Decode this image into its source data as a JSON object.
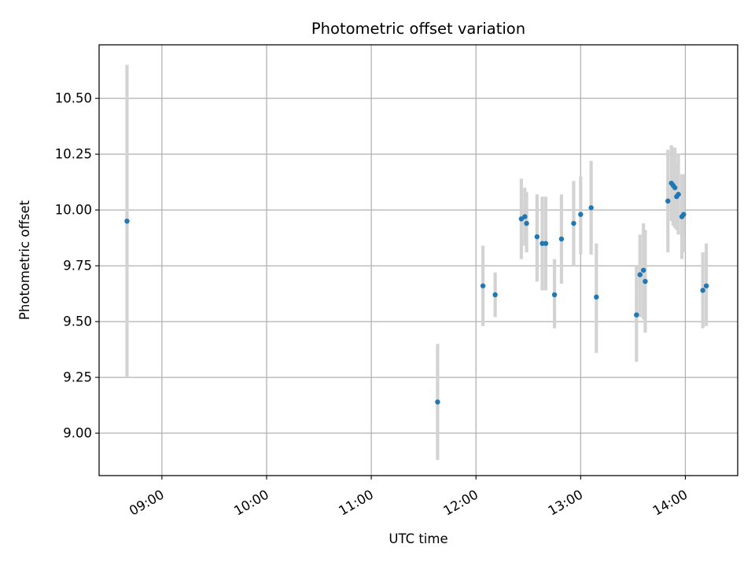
{
  "chart_data": {
    "type": "scatter",
    "title": "Photometric offset variation",
    "xlabel": "UTC time",
    "ylabel": "Photometric offset",
    "x_axis": {
      "unit": "hours UTC",
      "min": "08:24",
      "max": "14:30",
      "ticks": [
        {
          "x": "09:00",
          "label": "09:00"
        },
        {
          "x": "10:00",
          "label": "10:00"
        },
        {
          "x": "11:00",
          "label": "11:00"
        },
        {
          "x": "12:00",
          "label": "12:00"
        },
        {
          "x": "13:00",
          "label": "13:00"
        },
        {
          "x": "14:00",
          "label": "14:00"
        }
      ]
    },
    "y_axis": {
      "min": 8.81,
      "max": 10.74,
      "ticks": [
        {
          "y": 9.0,
          "label": "9.00"
        },
        {
          "y": 9.25,
          "label": "9.25"
        },
        {
          "y": 9.5,
          "label": "9.50"
        },
        {
          "y": 9.75,
          "label": "9.75"
        },
        {
          "y": 10.0,
          "label": "10.00"
        },
        {
          "y": 10.25,
          "label": "10.25"
        },
        {
          "y": 10.5,
          "label": "10.50"
        }
      ]
    },
    "grid": true,
    "legend": "none",
    "colors": {
      "point": "#1f77b4",
      "error_bar": "#d3d3d3",
      "grid": "#b0b0b0"
    },
    "points": [
      {
        "x": "08:40",
        "y": 9.95,
        "ylow": 9.25,
        "yhigh": 10.65
      },
      {
        "x": "11:38",
        "y": 9.14,
        "ylow": 8.88,
        "yhigh": 9.4
      },
      {
        "x": "12:04",
        "y": 9.66,
        "ylow": 9.48,
        "yhigh": 9.84
      },
      {
        "x": "12:11",
        "y": 9.62,
        "ylow": 9.52,
        "yhigh": 9.72
      },
      {
        "x": "12:26",
        "y": 9.96,
        "ylow": 9.78,
        "yhigh": 10.14
      },
      {
        "x": "12:28",
        "y": 9.97,
        "ylow": 9.84,
        "yhigh": 10.1
      },
      {
        "x": "12:29",
        "y": 9.94,
        "ylow": 9.81,
        "yhigh": 10.08
      },
      {
        "x": "12:35",
        "y": 9.88,
        "ylow": 9.68,
        "yhigh": 10.07
      },
      {
        "x": "12:38",
        "y": 9.85,
        "ylow": 9.64,
        "yhigh": 10.06
      },
      {
        "x": "12:40",
        "y": 9.85,
        "ylow": 9.64,
        "yhigh": 10.06
      },
      {
        "x": "12:45",
        "y": 9.62,
        "ylow": 9.47,
        "yhigh": 9.78
      },
      {
        "x": "12:49",
        "y": 9.87,
        "ylow": 9.67,
        "yhigh": 10.07
      },
      {
        "x": "12:56",
        "y": 9.94,
        "ylow": 9.75,
        "yhigh": 10.13
      },
      {
        "x": "13:00",
        "y": 9.98,
        "ylow": 9.8,
        "yhigh": 10.15
      },
      {
        "x": "13:06",
        "y": 10.01,
        "ylow": 9.8,
        "yhigh": 10.22
      },
      {
        "x": "13:09",
        "y": 9.61,
        "ylow": 9.36,
        "yhigh": 9.85
      },
      {
        "x": "13:32",
        "y": 9.53,
        "ylow": 9.32,
        "yhigh": 9.75
      },
      {
        "x": "13:34",
        "y": 9.71,
        "ylow": 9.52,
        "yhigh": 9.89
      },
      {
        "x": "13:36",
        "y": 9.73,
        "ylow": 9.51,
        "yhigh": 9.94
      },
      {
        "x": "13:37",
        "y": 9.68,
        "ylow": 9.45,
        "yhigh": 9.91
      },
      {
        "x": "13:50",
        "y": 10.04,
        "ylow": 9.81,
        "yhigh": 10.27
      },
      {
        "x": "13:52",
        "y": 10.12,
        "ylow": 9.95,
        "yhigh": 10.29
      },
      {
        "x": "13:53",
        "y": 10.11,
        "ylow": 9.93,
        "yhigh": 10.28
      },
      {
        "x": "13:54",
        "y": 10.1,
        "ylow": 9.92,
        "yhigh": 10.28
      },
      {
        "x": "13:55",
        "y": 10.06,
        "ylow": 9.91,
        "yhigh": 10.21
      },
      {
        "x": "13:56",
        "y": 10.07,
        "ylow": 9.89,
        "yhigh": 10.25
      },
      {
        "x": "13:58",
        "y": 9.97,
        "ylow": 9.78,
        "yhigh": 10.16
      },
      {
        "x": "13:59",
        "y": 9.98,
        "ylow": 9.81,
        "yhigh": 10.16
      },
      {
        "x": "14:10",
        "y": 9.64,
        "ylow": 9.47,
        "yhigh": 9.81
      },
      {
        "x": "14:12",
        "y": 9.66,
        "ylow": 9.48,
        "yhigh": 9.85
      }
    ]
  }
}
